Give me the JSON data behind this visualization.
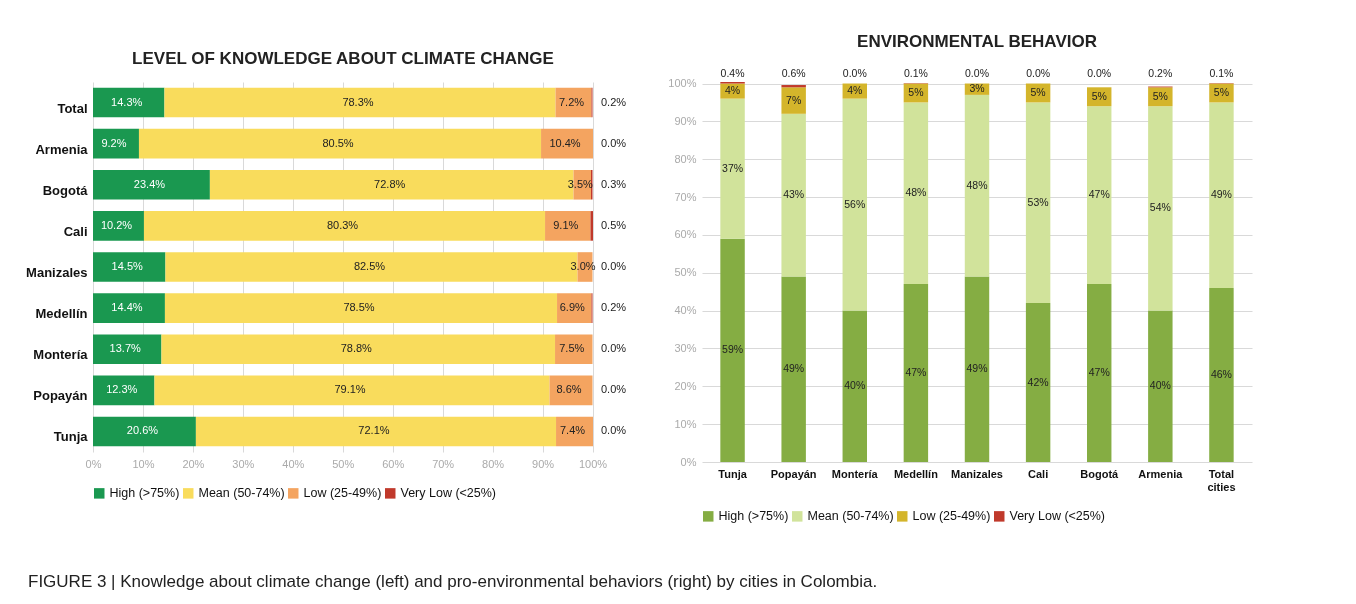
{
  "chart_data": [
    {
      "type": "bar",
      "title": "LEVEL OF KNOWLEDGE ABOUT CLIMATE CHANGE",
      "orientation": "horizontal",
      "stacked": true,
      "categories": [
        "Total",
        "Armenia",
        "Bogotá",
        "Cali",
        "Manizales",
        "Medellín",
        "Montería",
        "Popayán",
        "Tunja"
      ],
      "series": [
        {
          "name": "High (>75%)",
          "color": "#1a9850",
          "values": [
            14.3,
            9.2,
            23.4,
            10.2,
            14.5,
            14.4,
            13.7,
            12.3,
            20.6
          ],
          "value_labels": [
            "14.3%",
            "9.2%",
            "23.4%",
            "10.2%",
            "14.5%",
            "14.4%",
            "13.7%",
            "12.3%",
            "20.6%"
          ]
        },
        {
          "name": "Mean (50-74%)",
          "color": "#f9dc5c",
          "values": [
            78.3,
            80.5,
            72.8,
            80.3,
            82.5,
            78.5,
            78.8,
            79.1,
            72.1
          ],
          "value_labels": [
            "78.3%",
            "80.5%",
            "72.8%",
            "80.3%",
            "82.5%",
            "78.5%",
            "78.8%",
            "79.1%",
            "72.1%"
          ]
        },
        {
          "name": "Low (25-49%)",
          "color": "#f4a460",
          "values": [
            7.2,
            10.4,
            3.5,
            9.1,
            3.0,
            6.9,
            7.5,
            8.6,
            7.4
          ],
          "value_labels": [
            "7.2%",
            "10.4%",
            "3.5%",
            "9.1%",
            "3.0%",
            "6.9%",
            "7.5%",
            "8.6%",
            "7.4%"
          ]
        },
        {
          "name": "Very Low (<25%)",
          "color": "#c0392b",
          "values": [
            0.2,
            0,
            0.3,
            0.5,
            0,
            0.2,
            0,
            0,
            0
          ],
          "value_labels": [
            "0.2%",
            "0.0%",
            "0.3%",
            "0.5%",
            "0.0%",
            "0.2%",
            "0.0%",
            "0.0%",
            "0.0%"
          ]
        }
      ],
      "xlim": [
        0,
        100.1
      ],
      "xticks": [
        {
          "value": 0,
          "label": "0%"
        },
        {
          "value": 10,
          "label": "10%"
        },
        {
          "value": 20,
          "label": "20%"
        },
        {
          "value": 30,
          "label": "30%"
        },
        {
          "value": 40,
          "label": "40%"
        },
        {
          "value": 50,
          "label": "50%"
        },
        {
          "value": 60,
          "label": "60%"
        },
        {
          "value": 70,
          "label": "70%"
        },
        {
          "value": 80,
          "label": "80%"
        },
        {
          "value": 90,
          "label": "90%"
        },
        {
          "value": 100,
          "label": "100%"
        }
      ],
      "grid": "x",
      "legend": "bottom",
      "annotations": [
        "FIGURE 3 | Knowledge about climate change (left) and pro-environmental behaviors (right) by cities in Colombia."
      ]
    },
    {
      "type": "bar",
      "title": "ENVIRONMENTAL BEHAVIOR",
      "stacked": true,
      "categories": [
        "Tunja",
        "Popayán",
        "Montería",
        "Medellín",
        "Manizales",
        "Cali",
        "Bogotá",
        "Armenia",
        "Total cities"
      ],
      "series": [
        {
          "name": "High (>75%)",
          "color": "#85ad43",
          "values": [
            59,
            49,
            40,
            47,
            49,
            42,
            47,
            40,
            46
          ],
          "value_labels": [
            "59%",
            "49%",
            "40%",
            "47%",
            "49%",
            "42%",
            "47%",
            "40%",
            "46%"
          ]
        },
        {
          "name": "Mean (50-74%)",
          "color": "#d1e39b",
          "values": [
            37,
            43,
            56,
            48,
            48,
            53,
            47,
            54,
            49
          ],
          "value_labels": [
            "37%",
            "43%",
            "56%",
            "48%",
            "48%",
            "53%",
            "47%",
            "54%",
            "49%"
          ]
        },
        {
          "name": "Low (25-49%)",
          "color": "#d4b52b",
          "values": [
            4,
            7,
            4,
            5,
            3,
            5,
            5,
            5,
            5
          ],
          "value_labels": [
            "4%",
            "7%",
            "4%",
            "5%",
            "3%",
            "5%",
            "5%",
            "5%",
            "5%"
          ]
        },
        {
          "name": "Very Low (<25%)",
          "color": "#c0392b",
          "values": [
            0.4,
            0.6,
            0,
            0.1,
            0,
            0,
            0,
            0.2,
            0.1
          ],
          "value_labels": [
            "0.4%",
            "0.6%",
            "0.0%",
            "0.1%",
            "0.0%",
            "0.0%",
            "0.0%",
            "0.2%",
            "0.1%"
          ]
        }
      ],
      "ylim": [
        0,
        100.4
      ],
      "yticks": [
        {
          "value": 0,
          "label": "0%"
        },
        {
          "value": 10,
          "label": "10%"
        },
        {
          "value": 20,
          "label": "20%"
        },
        {
          "value": 30,
          "label": "30%"
        },
        {
          "value": 40,
          "label": "40%"
        },
        {
          "value": 50,
          "label": "50%"
        },
        {
          "value": 60,
          "label": "60%"
        },
        {
          "value": 70,
          "label": "70%"
        },
        {
          "value": 80,
          "label": "80%"
        },
        {
          "value": 90,
          "label": "90%"
        },
        {
          "value": 100,
          "label": "100%"
        }
      ],
      "grid": "y",
      "legend": "bottom"
    }
  ]
}
